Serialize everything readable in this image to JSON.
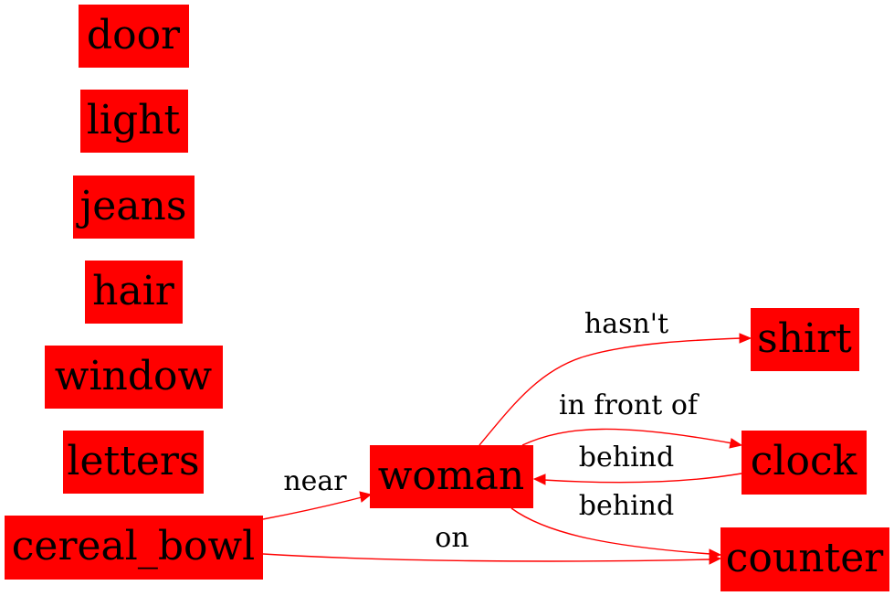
{
  "colors": {
    "node_fill": "#ff0000",
    "edge": "#ff0000",
    "text": "#000000"
  },
  "nodes": [
    {
      "id": "door",
      "label": "door"
    },
    {
      "id": "light",
      "label": "light"
    },
    {
      "id": "jeans",
      "label": "jeans"
    },
    {
      "id": "hair",
      "label": "hair"
    },
    {
      "id": "window",
      "label": "window"
    },
    {
      "id": "letters",
      "label": "letters"
    },
    {
      "id": "cereal_bowl",
      "label": "cereal_bowl"
    },
    {
      "id": "woman",
      "label": "woman"
    },
    {
      "id": "shirt",
      "label": "shirt"
    },
    {
      "id": "clock",
      "label": "clock"
    },
    {
      "id": "counter",
      "label": "counter"
    }
  ],
  "edges": [
    {
      "id": "e-near",
      "from": "cereal_bowl",
      "to": "woman",
      "label": "near"
    },
    {
      "id": "e-on",
      "from": "cereal_bowl",
      "to": "counter",
      "label": "on"
    },
    {
      "id": "e-hasnt",
      "from": "woman",
      "to": "shirt",
      "label": "hasn't"
    },
    {
      "id": "e-infrontof",
      "from": "woman",
      "to": "clock",
      "label": "in front of"
    },
    {
      "id": "e-behind-1",
      "from": "clock",
      "to": "woman",
      "label": "behind"
    },
    {
      "id": "e-behind-2",
      "from": "woman",
      "to": "counter",
      "label": "behind"
    }
  ]
}
